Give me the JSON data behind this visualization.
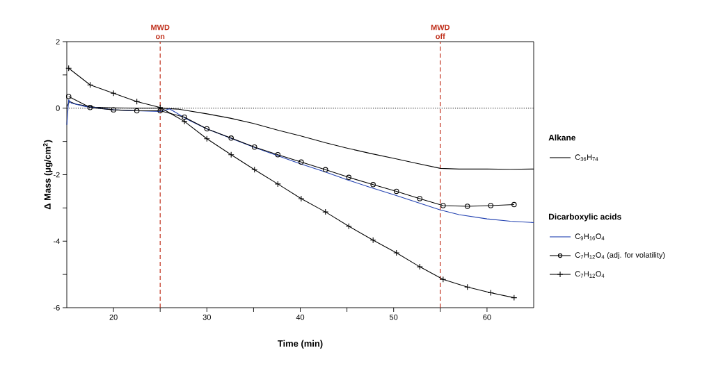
{
  "chart_data": {
    "type": "line",
    "xlabel": "Time (min)",
    "ylabel": "Δ Mass (µg/cm$^{2}$)",
    "xlim": [
      15,
      65
    ],
    "ylim": [
      -6,
      2
    ],
    "xticks": [
      20,
      {
        "value": 25,
        "label": null
      },
      30,
      {
        "value": 35,
        "label": null
      },
      40,
      {
        "value": 45,
        "label": null
      },
      50,
      {
        "value": 55,
        "label": null
      },
      60
    ],
    "yticks": [
      -6,
      {
        "value": -5,
        "label": null
      },
      -4,
      {
        "value": -3,
        "label": null
      },
      -2,
      {
        "value": -1,
        "label": null
      },
      0,
      {
        "value": 1,
        "label": null
      },
      2
    ],
    "legend": "right",
    "legend_title": "Alkane",
    "annotations": [
      "Dicarboxylic acids"
    ],
    "ref_lines": [
      {
        "axis": "x",
        "value": 25,
        "label": "MWD on",
        "color": "#c0301c",
        "line_style": "dashed"
      },
      {
        "axis": "x",
        "value": 55,
        "label": "MWD off",
        "color": "#c0301c",
        "line_style": "dashed"
      },
      {
        "axis": "y",
        "value": 0,
        "label": null,
        "color": "#000000",
        "line_style": "dotted"
      }
    ],
    "series": [
      {
        "name": "C$_{36}$H$_{74}$",
        "color": "#000000",
        "marker": "none",
        "x": [
          15,
          15.3,
          16,
          18,
          20,
          22.5,
          25,
          27,
          30,
          32.5,
          35,
          37.7,
          40,
          42.7,
          45,
          47.5,
          50.2,
          52.5,
          55,
          57,
          60,
          62.5,
          65
        ],
        "values": [
          0.05,
          0.2,
          0.12,
          0.03,
          0.01,
          0,
          0,
          -0.03,
          -0.17,
          -0.3,
          -0.46,
          -0.67,
          -0.83,
          -1.04,
          -1.2,
          -1.36,
          -1.52,
          -1.66,
          -1.81,
          -1.83,
          -1.83,
          -1.84,
          -1.83
        ]
      },
      {
        "name": "C$_{9}$H$_{16}$O$_{4}$",
        "color": "#2140b0",
        "marker": "none",
        "x": [
          15,
          15.2,
          15.5,
          17,
          20,
          22.5,
          25,
          26,
          28,
          30,
          32.5,
          35,
          37.5,
          40,
          42.5,
          45,
          47.5,
          50,
          52.5,
          55,
          57,
          60,
          62.5,
          65
        ],
        "values": [
          -0.5,
          0.25,
          0.15,
          0.05,
          -0.05,
          -0.08,
          -0.1,
          -0.02,
          -0.35,
          -0.62,
          -0.9,
          -1.17,
          -1.42,
          -1.67,
          -1.9,
          -2.15,
          -2.38,
          -2.6,
          -2.83,
          -3.06,
          -3.2,
          -3.33,
          -3.4,
          -3.44
        ]
      },
      {
        "name": "C$_{7}$H$_{12}$O$_{4}$ (adj. for volatility)",
        "color": "#000000",
        "marker": "circle",
        "x": [
          15.2,
          17.5,
          20,
          22.5,
          25,
          27.6,
          30,
          32.6,
          35.1,
          37.6,
          40.1,
          42.7,
          45.2,
          47.8,
          50.3,
          52.8,
          55.3,
          57.9,
          60.4,
          62.9
        ],
        "values": [
          0.35,
          0.02,
          -0.05,
          -0.08,
          -0.08,
          -0.27,
          -0.62,
          -0.9,
          -1.17,
          -1.4,
          -1.62,
          -1.85,
          -2.08,
          -2.3,
          -2.5,
          -2.72,
          -2.93,
          -2.95,
          -2.93,
          -2.9
        ]
      },
      {
        "name": "C$_{7}$H$_{12}$O$_{4}$",
        "color": "#000000",
        "marker": "cross",
        "x": [
          15.2,
          17.5,
          20,
          22.5,
          25,
          27.6,
          30,
          32.6,
          35.1,
          37.6,
          40.1,
          42.7,
          45.2,
          47.8,
          50.3,
          52.8,
          55.3,
          57.9,
          60.4,
          62.9
        ],
        "values": [
          1.2,
          0.7,
          0.45,
          0.2,
          0.02,
          -0.4,
          -0.92,
          -1.4,
          -1.85,
          -2.28,
          -2.72,
          -3.12,
          -3.55,
          -3.97,
          -4.35,
          -4.77,
          -5.15,
          -5.38,
          -5.55,
          -5.7
        ]
      }
    ]
  }
}
